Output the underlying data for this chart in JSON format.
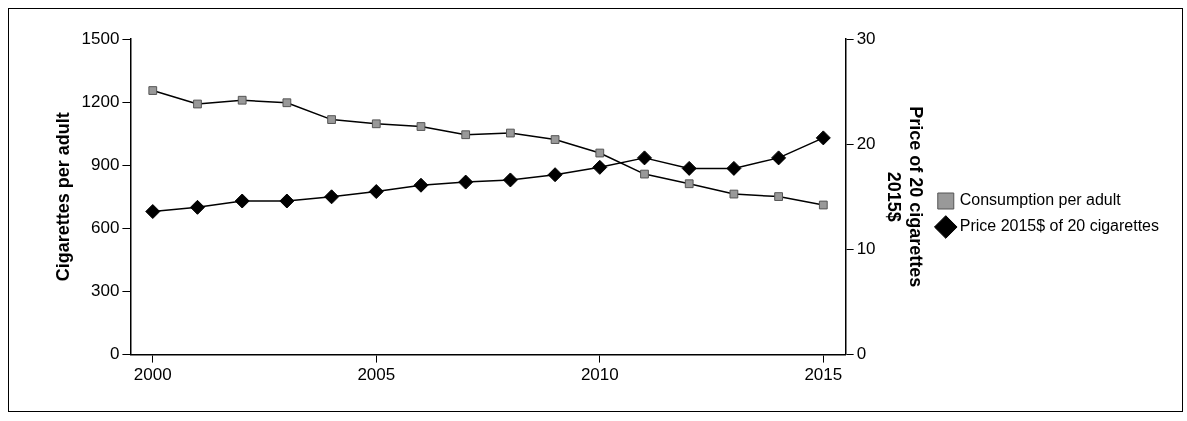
{
  "chart_data": {
    "type": "line",
    "ylabel": "Cigarettes per adult",
    "y2label": "Price of 20 cigarettes 2015$",
    "x": [
      2000,
      2001,
      2002,
      2003,
      2004,
      2005,
      2006,
      2007,
      2008,
      2009,
      2010,
      2011,
      2012,
      2013,
      2014,
      2015
    ],
    "xlim": [
      1999.5,
      2015.5
    ],
    "xticks": [
      2000,
      2005,
      2010,
      2015
    ],
    "ylim": [
      0,
      1500
    ],
    "yticks": [
      0,
      300,
      600,
      900,
      1200,
      1500
    ],
    "y2lim": [
      0,
      30
    ],
    "y2ticks": [
      0,
      10,
      20,
      30
    ],
    "series": [
      {
        "name": "Consumption per adult",
        "color": "#999999",
        "marker": "square",
        "values": [
          1255,
          1191,
          1209,
          1197,
          1117,
          1097,
          1084,
          1045,
          1053,
          1022,
          958,
          858,
          812,
          763,
          751,
          711
        ]
      },
      {
        "name": "Price 2015$ of 20 cigarettes",
        "color": "#000000",
        "marker": "diamond",
        "axis": "y2",
        "values": [
          13.6,
          14.0,
          14.6,
          14.6,
          15.0,
          15.5,
          16.1,
          16.4,
          16.6,
          17.1,
          17.8,
          18.7,
          17.7,
          17.7,
          18.7,
          20.6
        ]
      }
    ],
    "grid": false,
    "legend": "right",
    "line_style": "solid"
  }
}
